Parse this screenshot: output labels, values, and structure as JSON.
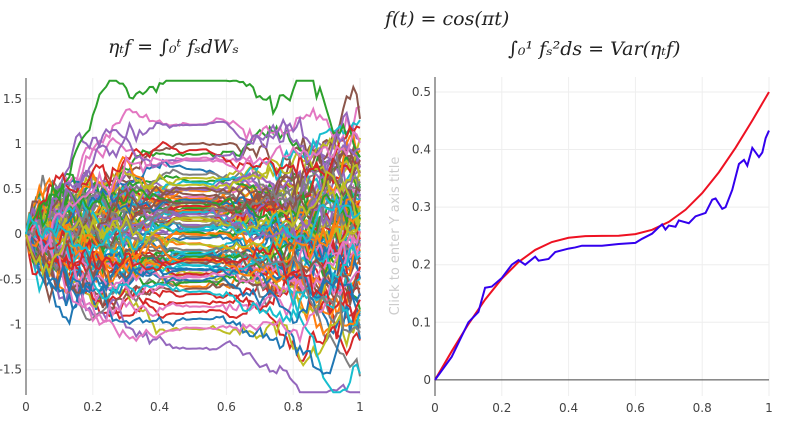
{
  "titles": {
    "left": "ηₜf = ∫₀ᵗ fₛdWₛ",
    "center": "f(t) = cos(πt)",
    "right": "∫₀¹ fₛ²ds = Var(ηₜf)"
  },
  "chart_data": [
    {
      "type": "line",
      "title": "ηₜf = ∫₀ᵗ fₛdWₛ",
      "description_of_series": "simulated paths",
      "path_count": 100,
      "steps": 100,
      "xlim": [
        0,
        1
      ],
      "ylim": [
        -1.78,
        1.73
      ],
      "xticks": [
        "0",
        "0.2",
        "0.4",
        "0.6",
        "0.8",
        "1"
      ],
      "xtick_values": [
        0,
        0.2,
        0.4,
        0.6,
        0.8,
        1
      ],
      "yticks": [
        "1.5",
        "1",
        "0.5",
        "0",
        "-0.5",
        "-1",
        "-1.5"
      ],
      "ytick_values": [
        1.5,
        1,
        0.5,
        0,
        -0.5,
        -1,
        -1.5
      ],
      "grid": true,
      "colors": [
        "#1f77b4",
        "#ff7f0e",
        "#2ca02c",
        "#d62728",
        "#9467bd",
        "#8c564b",
        "#e377c2",
        "#7f7f7f",
        "#bcbd22",
        "#17becf"
      ]
    },
    {
      "type": "line",
      "title": "∫₀¹ fₛ²ds = Var(ηₜf)",
      "ylabel": "Click to enter Y axis title",
      "xlim": [
        0,
        1
      ],
      "ylim": [
        -0.028,
        0.526
      ],
      "xticks": [
        "0",
        "0.2",
        "0.4",
        "0.6",
        "0.8",
        "1"
      ],
      "xtick_values": [
        0,
        0.2,
        0.4,
        0.6,
        0.8,
        1
      ],
      "yticks": [
        "0",
        "0.1",
        "0.2",
        "0.3",
        "0.4",
        "0.5"
      ],
      "ytick_values": [
        0,
        0.1,
        0.2,
        0.3,
        0.4,
        0.5
      ],
      "grid": true,
      "series": [
        {
          "color": "#ee1122",
          "x": [
            0,
            0.05,
            0.1,
            0.15,
            0.2,
            0.25,
            0.3,
            0.35,
            0.4,
            0.45,
            0.5,
            0.55,
            0.6,
            0.65,
            0.7,
            0.75,
            0.8,
            0.85,
            0.9,
            0.95,
            1
          ],
          "y": [
            0,
            0.0496,
            0.0968,
            0.1394,
            0.1757,
            0.2046,
            0.2257,
            0.2394,
            0.2468,
            0.2496,
            0.25,
            0.2504,
            0.2532,
            0.2606,
            0.2743,
            0.2954,
            0.3243,
            0.3606,
            0.4032,
            0.4504,
            0.5
          ]
        },
        {
          "color": "#3300ee",
          "x": [
            0,
            0.05,
            0.1,
            0.13,
            0.15,
            0.17,
            0.2,
            0.23,
            0.25,
            0.27,
            0.3,
            0.31,
            0.34,
            0.36,
            0.4,
            0.42,
            0.44,
            0.5,
            0.55,
            0.6,
            0.62,
            0.65,
            0.67,
            0.68,
            0.69,
            0.7,
            0.72,
            0.73,
            0.76,
            0.78,
            0.81,
            0.83,
            0.84,
            0.86,
            0.87,
            0.89,
            0.91,
            0.925,
            0.935,
            0.95,
            0.97,
            0.98,
            0.99,
            1
          ],
          "y": [
            0,
            0.04,
            0.1,
            0.118,
            0.16,
            0.162,
            0.177,
            0.2,
            0.208,
            0.2,
            0.214,
            0.207,
            0.21,
            0.222,
            0.228,
            0.23,
            0.233,
            0.233,
            0.236,
            0.238,
            0.245,
            0.254,
            0.265,
            0.27,
            0.261,
            0.268,
            0.266,
            0.277,
            0.272,
            0.284,
            0.29,
            0.313,
            0.315,
            0.297,
            0.3,
            0.33,
            0.375,
            0.382,
            0.372,
            0.403,
            0.387,
            0.395,
            0.42,
            0.433
          ]
        }
      ]
    }
  ]
}
